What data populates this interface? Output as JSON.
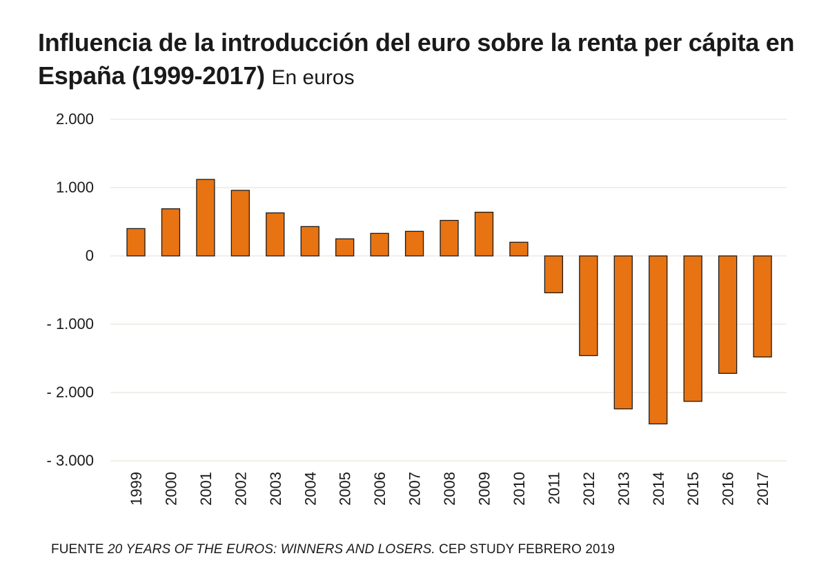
{
  "title": "Influencia de la introducción del euro sobre la renta per cápita en España (1999-2017)",
  "subtitle": "En euros",
  "source": {
    "prefix": "FUENTE ",
    "work": "20 YEARS OF THE EUROS: WINNERS AND LOSERS.",
    "suffix": " CEP STUDY FEBRERO 2019"
  },
  "colors": {
    "bar": "#E87312",
    "bar_outline": "#1a1a1a",
    "grid": "#E6DDD3"
  },
  "chart_data": {
    "type": "bar",
    "title": "Influencia de la introducción del euro sobre la renta per cápita en España (1999-2017)",
    "subtitle": "En euros",
    "xlabel": "",
    "ylabel": "",
    "ylim": [
      -3000,
      2000
    ],
    "yticks": [
      2000,
      1000,
      0,
      -1000,
      -2000,
      -3000
    ],
    "ytick_labels": [
      "2.000",
      "1.000",
      "0",
      "- 1.000",
      "- 2.000",
      "- 3.000"
    ],
    "grid": true,
    "categories": [
      "1999",
      "2000",
      "2001",
      "2002",
      "2003",
      "2004",
      "2005",
      "2006",
      "2007",
      "2008",
      "2009",
      "2010",
      "2011",
      "2012",
      "2013",
      "2014",
      "2015",
      "2016",
      "2017"
    ],
    "values": [
      400,
      690,
      1120,
      960,
      630,
      430,
      250,
      330,
      360,
      520,
      640,
      200,
      -540,
      -1460,
      -2240,
      -2460,
      -2130,
      -1720,
      -1480
    ]
  }
}
